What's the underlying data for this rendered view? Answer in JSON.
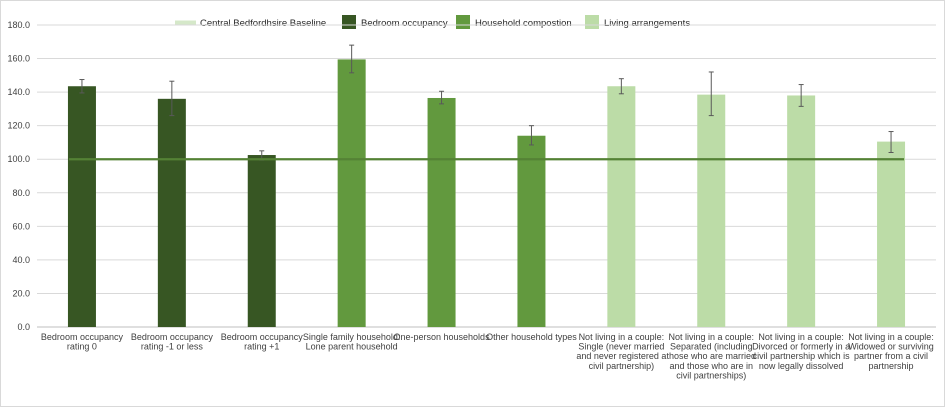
{
  "chart_data": {
    "type": "bar",
    "title": "",
    "xlabel": "",
    "ylabel": "",
    "ylim": [
      0,
      180
    ],
    "yticks": [
      "0.0",
      "20.0",
      "40.0",
      "60.0",
      "80.0",
      "100.0",
      "120.0",
      "140.0",
      "160.0",
      "180.0"
    ],
    "grid": true,
    "legend_position": "top",
    "baseline": {
      "name": "Central Bedfordhsire Baseline",
      "value": 100,
      "color": "#548235",
      "legend_color": "#d5e8c9"
    },
    "groups": [
      {
        "name": "Bedroom occupancy",
        "color": "#375623"
      },
      {
        "name": "Household compostion",
        "color": "#62993e"
      },
      {
        "name": "Living arrangements",
        "color": "#bcdca7"
      }
    ],
    "categories": [
      {
        "label": [
          "Bedroom occupancy",
          "rating 0"
        ],
        "value": 143.5,
        "err_low": 139.5,
        "err_high": 147.5,
        "group": 0
      },
      {
        "label": [
          "Bedroom occupancy",
          "rating -1 or less"
        ],
        "value": 136,
        "err_low": 126,
        "err_high": 146.5,
        "group": 0
      },
      {
        "label": [
          "Bedroom occupancy",
          "rating +1"
        ],
        "value": 102.5,
        "err_low": 99.5,
        "err_high": 105,
        "group": 0
      },
      {
        "label": [
          "Single family household:",
          "Lone parent household"
        ],
        "value": 159.5,
        "err_low": 151.5,
        "err_high": 168,
        "group": 1
      },
      {
        "label": [
          "One-person households"
        ],
        "value": 136.5,
        "err_low": 133,
        "err_high": 140.5,
        "group": 1
      },
      {
        "label": [
          "Other household types"
        ],
        "value": 114,
        "err_low": 108.5,
        "err_high": 120,
        "group": 1
      },
      {
        "label": [
          "Not living in a couple:",
          "Single (never married",
          "and never registered a",
          "civil partnership)"
        ],
        "value": 143.5,
        "err_low": 139,
        "err_high": 148,
        "group": 2
      },
      {
        "label": [
          "Not living in a couple:",
          "Separated (including",
          "those who are married",
          "and those who are in",
          "civil partnerships)"
        ],
        "value": 138.5,
        "err_low": 126,
        "err_high": 152,
        "group": 2
      },
      {
        "label": [
          "Not living in a couple:",
          "Divorced or formerly in a",
          "civil partnership which is",
          "now legally dissolved"
        ],
        "value": 138,
        "err_low": 131.5,
        "err_high": 144.5,
        "group": 2
      },
      {
        "label": [
          "Not living in a couple:",
          "Widowed or surviving",
          "partner from a civil",
          "partnership"
        ],
        "value": 110.5,
        "err_low": 104,
        "err_high": 116.5,
        "group": 2
      }
    ]
  }
}
